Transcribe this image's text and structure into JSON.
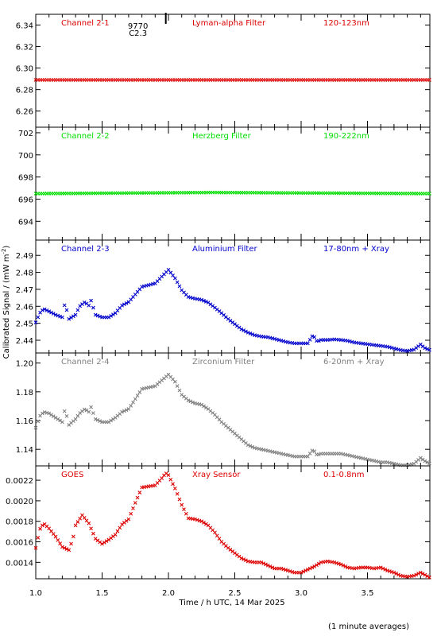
{
  "xlabel": "Time / h UTC, 14 Mar 2025",
  "ylabel_prefix": "Calibrated Signal / (mW m",
  "ylabel_sup": "-2",
  "ylabel_suffix": ")",
  "footnote": "(1 minute averages)",
  "event": {
    "x": 1.98,
    "line1": "9770",
    "line2": "C2.3"
  },
  "x_ticks": [
    1.0,
    1.5,
    2.0,
    2.5,
    3.0,
    3.5
  ],
  "x_tick_labels": [
    "1.0",
    "1.5",
    "2.0",
    "2.5",
    "3.0",
    "3.5"
  ],
  "chart_data": [
    {
      "type": "scatter",
      "name": "Channel 2-1",
      "filter": "Lyman-alpha Filter",
      "band": "120-123nm",
      "color": "#dd0000",
      "xlim": [
        1.0,
        3.97
      ],
      "ylim": [
        6.245,
        6.35
      ],
      "yticks": [
        6.26,
        6.28,
        6.3,
        6.32,
        6.34
      ],
      "ytick_labels": [
        "6.26",
        "6.28",
        "6.30",
        "6.32",
        "6.34"
      ],
      "points": [
        [
          1.0,
          6.289
        ],
        [
          3.97,
          6.289
        ]
      ]
    },
    {
      "type": "scatter",
      "name": "Channel 2-2",
      "filter": "Herzberg Filter",
      "band": "190-222nm",
      "color": "#00dd00",
      "xlim": [
        1.0,
        3.97
      ],
      "ylim": [
        692.3,
        702.5
      ],
      "yticks": [
        694,
        696,
        698,
        700,
        702
      ],
      "ytick_labels": [
        "694",
        "696",
        "698",
        "700",
        "702"
      ],
      "points": [
        [
          1.0,
          696.5
        ],
        [
          2.33,
          696.6
        ],
        [
          3.97,
          696.5
        ]
      ]
    },
    {
      "type": "scatter",
      "name": "Channel 2-3",
      "filter": "Aluminium Filter",
      "band": "17-80nm + Xray",
      "color": "#0000cc",
      "xlim": [
        1.0,
        3.97
      ],
      "ylim": [
        2.4325,
        2.499
      ],
      "yticks": [
        2.44,
        2.45,
        2.46,
        2.47,
        2.48,
        2.49
      ],
      "ytick_labels": [
        "2.44",
        "2.45",
        "2.46",
        "2.47",
        "2.48",
        "2.49"
      ],
      "points": [
        [
          1.0,
          2.4505
        ],
        [
          1.03,
          2.456
        ],
        [
          1.06,
          2.4585
        ],
        [
          1.1,
          2.457
        ],
        [
          1.15,
          2.455
        ],
        [
          1.2,
          2.4535
        ],
        [
          1.22,
          2.462
        ],
        [
          1.25,
          2.4525
        ],
        [
          1.3,
          2.455
        ],
        [
          1.33,
          2.46
        ],
        [
          1.37,
          2.4625
        ],
        [
          1.4,
          2.4605
        ],
        [
          1.41,
          2.465
        ],
        [
          1.45,
          2.455
        ],
        [
          1.5,
          2.4535
        ],
        [
          1.55,
          2.4535
        ],
        [
          1.6,
          2.456
        ],
        [
          1.65,
          2.4605
        ],
        [
          1.7,
          2.4625
        ],
        [
          1.75,
          2.467
        ],
        [
          1.8,
          2.4715
        ],
        [
          1.85,
          2.4725
        ],
        [
          1.9,
          2.4735
        ],
        [
          1.95,
          2.4775
        ],
        [
          2.0,
          2.4815
        ],
        [
          2.05,
          2.4765
        ],
        [
          2.1,
          2.4695
        ],
        [
          2.15,
          2.4655
        ],
        [
          2.2,
          2.4645
        ],
        [
          2.25,
          2.4638
        ],
        [
          2.3,
          2.4622
        ],
        [
          2.35,
          2.4592
        ],
        [
          2.4,
          2.456
        ],
        [
          2.45,
          2.4525
        ],
        [
          2.5,
          2.4495
        ],
        [
          2.55,
          2.4465
        ],
        [
          2.6,
          2.4445
        ],
        [
          2.65,
          2.443
        ],
        [
          2.7,
          2.4422
        ],
        [
          2.75,
          2.4418
        ],
        [
          2.8,
          2.4408
        ],
        [
          2.85,
          2.4398
        ],
        [
          2.9,
          2.4388
        ],
        [
          2.95,
          2.4382
        ],
        [
          3.0,
          2.4382
        ],
        [
          3.05,
          2.4382
        ],
        [
          3.09,
          2.4432
        ],
        [
          3.12,
          2.4392
        ],
        [
          3.15,
          2.4402
        ],
        [
          3.2,
          2.4402
        ],
        [
          3.25,
          2.4405
        ],
        [
          3.3,
          2.4402
        ],
        [
          3.35,
          2.4397
        ],
        [
          3.4,
          2.4387
        ],
        [
          3.45,
          2.4382
        ],
        [
          3.5,
          2.4377
        ],
        [
          3.55,
          2.4372
        ],
        [
          3.6,
          2.4367
        ],
        [
          3.65,
          2.4362
        ],
        [
          3.7,
          2.4352
        ],
        [
          3.75,
          2.4342
        ],
        [
          3.8,
          2.4337
        ],
        [
          3.85,
          2.4345
        ],
        [
          3.9,
          2.4375
        ],
        [
          3.93,
          2.4355
        ],
        [
          3.97,
          2.4342
        ]
      ]
    },
    {
      "type": "scatter",
      "name": "Channel 2-4",
      "filter": "Zirconium Filter",
      "band": "6-20nm + Xray",
      "color": "#808080",
      "xlim": [
        1.0,
        3.97
      ],
      "ylim": [
        1.1285,
        1.207
      ],
      "yticks": [
        1.14,
        1.16,
        1.18,
        1.2
      ],
      "ytick_labels": [
        "1.14",
        "1.16",
        "1.18",
        "1.20"
      ],
      "points": [
        [
          1.0,
          1.155
        ],
        [
          1.03,
          1.163
        ],
        [
          1.06,
          1.166
        ],
        [
          1.1,
          1.165
        ],
        [
          1.15,
          1.162
        ],
        [
          1.2,
          1.159
        ],
        [
          1.22,
          1.168
        ],
        [
          1.25,
          1.157
        ],
        [
          1.3,
          1.161
        ],
        [
          1.33,
          1.165
        ],
        [
          1.37,
          1.168
        ],
        [
          1.4,
          1.166
        ],
        [
          1.41,
          1.171
        ],
        [
          1.45,
          1.161
        ],
        [
          1.5,
          1.159
        ],
        [
          1.55,
          1.159
        ],
        [
          1.6,
          1.162
        ],
        [
          1.65,
          1.166
        ],
        [
          1.7,
          1.168
        ],
        [
          1.75,
          1.175
        ],
        [
          1.8,
          1.182
        ],
        [
          1.85,
          1.183
        ],
        [
          1.9,
          1.184
        ],
        [
          1.95,
          1.188
        ],
        [
          2.0,
          1.192
        ],
        [
          2.05,
          1.187
        ],
        [
          2.1,
          1.178
        ],
        [
          2.15,
          1.174
        ],
        [
          2.2,
          1.172
        ],
        [
          2.25,
          1.171
        ],
        [
          2.3,
          1.168
        ],
        [
          2.35,
          1.164
        ],
        [
          2.4,
          1.159
        ],
        [
          2.45,
          1.155
        ],
        [
          2.5,
          1.151
        ],
        [
          2.55,
          1.147
        ],
        [
          2.6,
          1.143
        ],
        [
          2.65,
          1.141
        ],
        [
          2.7,
          1.14
        ],
        [
          2.75,
          1.139
        ],
        [
          2.8,
          1.138
        ],
        [
          2.85,
          1.137
        ],
        [
          2.9,
          1.136
        ],
        [
          2.95,
          1.135
        ],
        [
          3.0,
          1.135
        ],
        [
          3.05,
          1.135
        ],
        [
          3.09,
          1.14
        ],
        [
          3.12,
          1.136
        ],
        [
          3.15,
          1.137
        ],
        [
          3.2,
          1.137
        ],
        [
          3.25,
          1.137
        ],
        [
          3.3,
          1.137
        ],
        [
          3.35,
          1.136
        ],
        [
          3.4,
          1.135
        ],
        [
          3.45,
          1.134
        ],
        [
          3.5,
          1.133
        ],
        [
          3.55,
          1.132
        ],
        [
          3.6,
          1.131
        ],
        [
          3.65,
          1.131
        ],
        [
          3.7,
          1.13
        ],
        [
          3.75,
          1.129
        ],
        [
          3.8,
          1.129
        ],
        [
          3.85,
          1.13
        ],
        [
          3.9,
          1.134
        ],
        [
          3.93,
          1.132
        ],
        [
          3.97,
          1.13
        ]
      ]
    },
    {
      "type": "scatter",
      "name": "GOES",
      "filter": "Xray Sensor",
      "band": "0.1-0.8nm",
      "color": "#dd0000",
      "xlim": [
        1.0,
        3.97
      ],
      "ylim": [
        0.00124,
        0.00234
      ],
      "yticks": [
        0.0014,
        0.0016,
        0.0018,
        0.002,
        0.0022
      ],
      "ytick_labels": [
        "0.0014",
        "0.0016",
        "0.0018",
        "0.0020",
        "0.0022"
      ],
      "points": [
        [
          1.0,
          0.00154
        ],
        [
          1.03,
          0.00172
        ],
        [
          1.06,
          0.00178
        ],
        [
          1.1,
          0.00173
        ],
        [
          1.15,
          0.00165
        ],
        [
          1.2,
          0.00155
        ],
        [
          1.25,
          0.00152
        ],
        [
          1.28,
          0.00163
        ],
        [
          1.3,
          0.00176
        ],
        [
          1.35,
          0.00186
        ],
        [
          1.4,
          0.00178
        ],
        [
          1.45,
          0.00163
        ],
        [
          1.5,
          0.00158
        ],
        [
          1.55,
          0.00162
        ],
        [
          1.6,
          0.00167
        ],
        [
          1.65,
          0.00177
        ],
        [
          1.7,
          0.00182
        ],
        [
          1.75,
          0.00198
        ],
        [
          1.8,
          0.00213
        ],
        [
          1.85,
          0.00214
        ],
        [
          1.9,
          0.00215
        ],
        [
          1.95,
          0.00222
        ],
        [
          1.98,
          0.00227
        ],
        [
          2.0,
          0.00225
        ],
        [
          2.05,
          0.00212
        ],
        [
          2.1,
          0.00196
        ],
        [
          2.15,
          0.00183
        ],
        [
          2.2,
          0.00182
        ],
        [
          2.25,
          0.0018
        ],
        [
          2.3,
          0.00176
        ],
        [
          2.35,
          0.00169
        ],
        [
          2.4,
          0.0016
        ],
        [
          2.45,
          0.00154
        ],
        [
          2.5,
          0.00149
        ],
        [
          2.55,
          0.00144
        ],
        [
          2.6,
          0.00141
        ],
        [
          2.65,
          0.0014
        ],
        [
          2.7,
          0.0014
        ],
        [
          2.75,
          0.00137
        ],
        [
          2.8,
          0.00134
        ],
        [
          2.85,
          0.00134
        ],
        [
          2.9,
          0.00132
        ],
        [
          2.95,
          0.0013
        ],
        [
          3.0,
          0.0013
        ],
        [
          3.05,
          0.00133
        ],
        [
          3.1,
          0.00136
        ],
        [
          3.15,
          0.0014
        ],
        [
          3.2,
          0.00141
        ],
        [
          3.25,
          0.0014
        ],
        [
          3.3,
          0.00138
        ],
        [
          3.35,
          0.00135
        ],
        [
          3.4,
          0.00134
        ],
        [
          3.45,
          0.00135
        ],
        [
          3.5,
          0.00135
        ],
        [
          3.55,
          0.00134
        ],
        [
          3.6,
          0.00135
        ],
        [
          3.65,
          0.00132
        ],
        [
          3.7,
          0.0013
        ],
        [
          3.75,
          0.00127
        ],
        [
          3.8,
          0.00126
        ],
        [
          3.85,
          0.00127
        ],
        [
          3.9,
          0.0013
        ],
        [
          3.93,
          0.00128
        ],
        [
          3.97,
          0.00125
        ]
      ]
    }
  ]
}
